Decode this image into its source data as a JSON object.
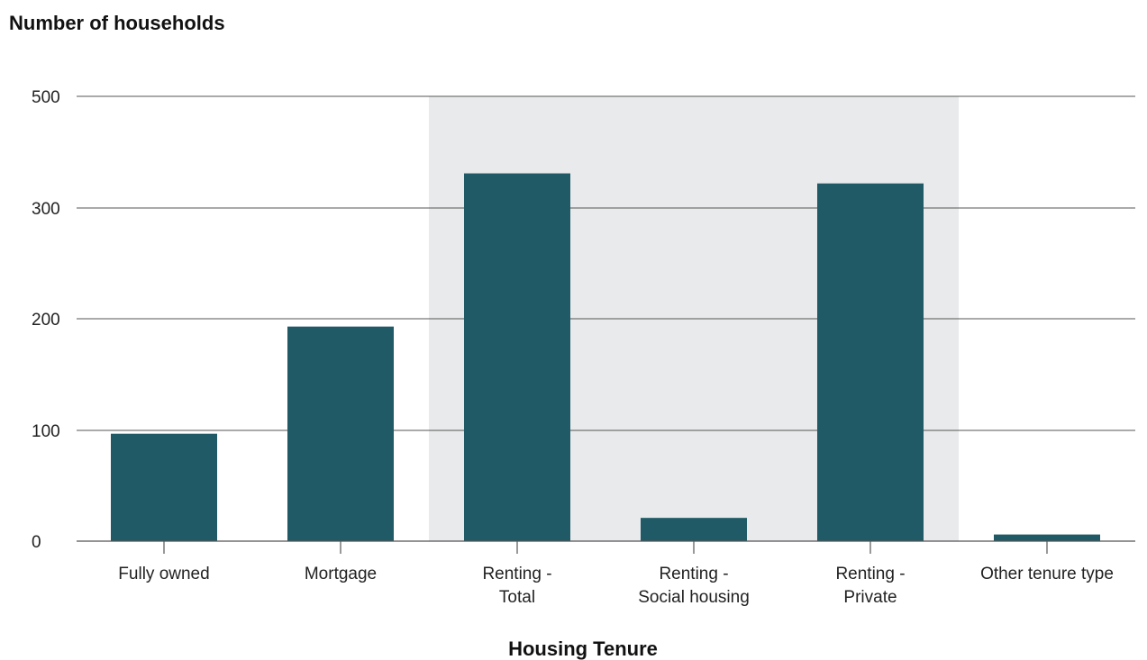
{
  "chart_data": {
    "type": "bar",
    "ylabel": "Number of households",
    "xlabel": "Housing Tenure",
    "categories": [
      [
        "Fully owned"
      ],
      [
        "Mortgage"
      ],
      [
        "Renting -",
        "Total"
      ],
      [
        "Renting -",
        "Social housing"
      ],
      [
        "Renting -",
        "Private"
      ],
      [
        "Other tenure type"
      ]
    ],
    "values": [
      97,
      193,
      362,
      21,
      344,
      6
    ],
    "yticks": [
      0,
      100,
      200,
      300,
      500
    ],
    "y_axis_breaks_note": "tick spacing as printed",
    "highlight_range": [
      2,
      4
    ],
    "colors": {
      "bar": "#1f5a66",
      "highlight": "#e8eaec",
      "grid": "#555555",
      "axis": "#555555"
    }
  }
}
